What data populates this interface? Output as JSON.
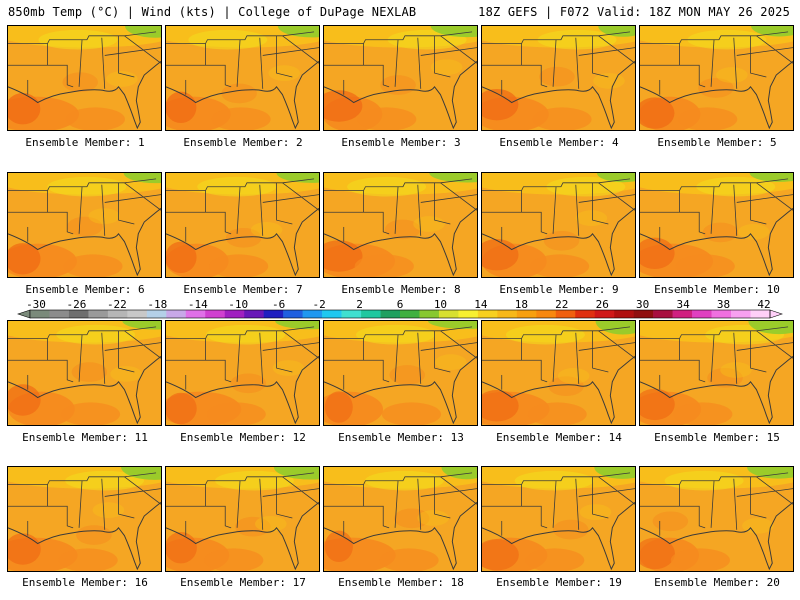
{
  "header": {
    "left_title": "850mb Temp (°C) | Wind (kts) | College of DuPage NEXLAB",
    "right_title": "18Z GEFS | F072 Valid: 18Z MON MAY 26 2025"
  },
  "colorbar": {
    "tick_labels": [
      "-30",
      "-26",
      "-22",
      "-18",
      "-14",
      "-10",
      "-6",
      "-2",
      "2",
      "6",
      "10",
      "14",
      "18",
      "22",
      "26",
      "30",
      "34",
      "38",
      "42"
    ],
    "colors": [
      "#7a8a7a",
      "#8c8c8c",
      "#6e6e6e",
      "#9a9a9a",
      "#b6b6b6",
      "#c8c8c8",
      "#b4d0e8",
      "#c8a8e8",
      "#e070e8",
      "#d040d0",
      "#a020c0",
      "#6818b8",
      "#2020c0",
      "#2060e0",
      "#2098f0",
      "#20c8f0",
      "#40e0d0",
      "#20c8a0",
      "#20a060",
      "#40b040",
      "#88c830",
      "#d8e030",
      "#f8f030",
      "#f8d020",
      "#f8b818",
      "#f8a010",
      "#f88810",
      "#f06010",
      "#e03010",
      "#d01818",
      "#b01010",
      "#901010",
      "#a81040",
      "#d02080",
      "#e040c0",
      "#f070e0",
      "#f8a0f0",
      "#ffd0f8"
    ]
  },
  "members": [
    {
      "label": "Ensemble Member: 1"
    },
    {
      "label": "Ensemble Member: 2"
    },
    {
      "label": "Ensemble Member: 3"
    },
    {
      "label": "Ensemble Member: 4"
    },
    {
      "label": "Ensemble Member: 5"
    },
    {
      "label": "Ensemble Member: 6"
    },
    {
      "label": "Ensemble Member: 7"
    },
    {
      "label": "Ensemble Member: 8"
    },
    {
      "label": "Ensemble Member: 9"
    },
    {
      "label": "Ensemble Member: 10"
    },
    {
      "label": "Ensemble Member: 11"
    },
    {
      "label": "Ensemble Member: 12"
    },
    {
      "label": "Ensemble Member: 13"
    },
    {
      "label": "Ensemble Member: 14"
    },
    {
      "label": "Ensemble Member: 15"
    },
    {
      "label": "Ensemble Member: 16"
    },
    {
      "label": "Ensemble Member: 17"
    },
    {
      "label": "Ensemble Member: 18"
    },
    {
      "label": "Ensemble Member: 19"
    },
    {
      "label": "Ensemble Member: 20"
    }
  ],
  "map_colors": {
    "base": "#f5a623",
    "warm": "#f68a1e",
    "hot": "#f06a14",
    "cool": "#f8c21a",
    "cooler": "#f3dc1e",
    "north": "#90cc2c",
    "lines": "#3a3a3a"
  }
}
